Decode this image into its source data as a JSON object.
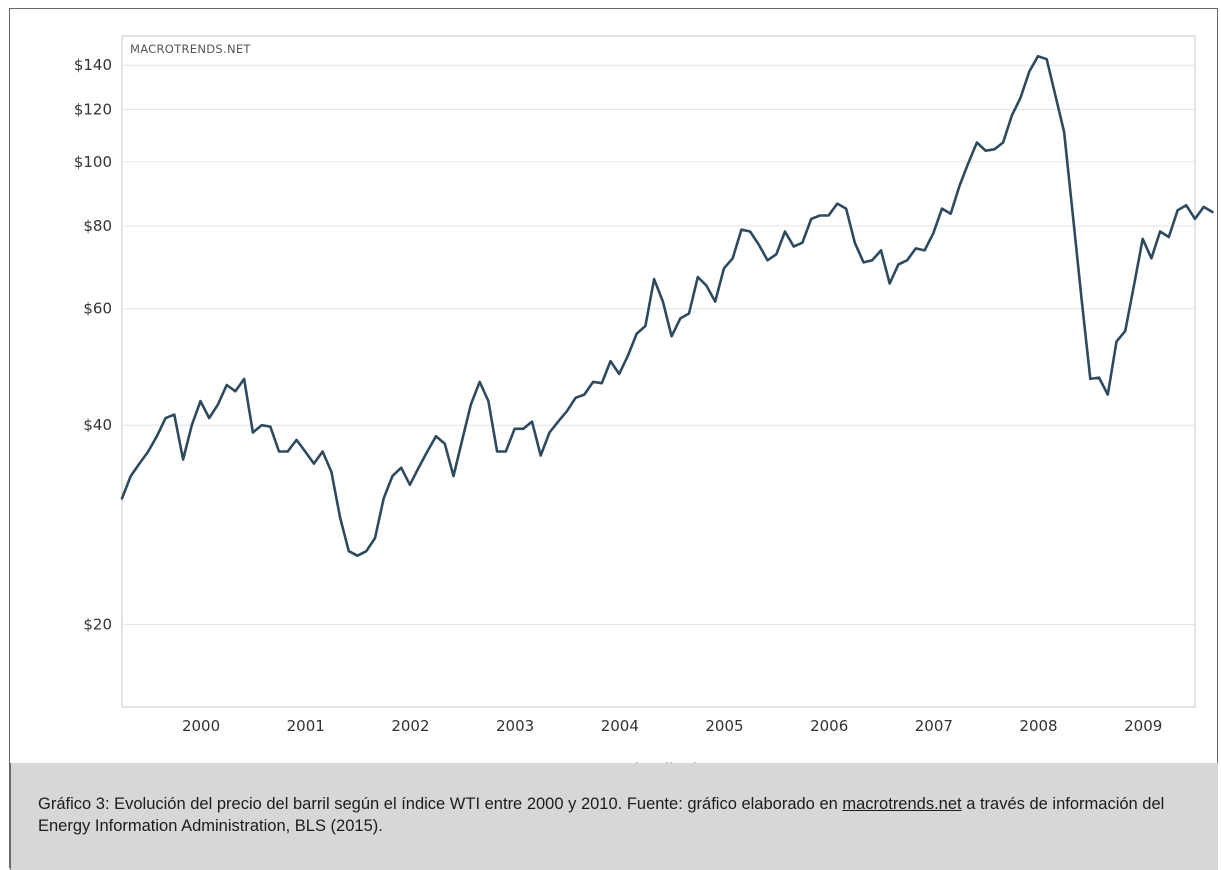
{
  "chart_data": {
    "type": "line",
    "watermark": "MACROTRENDS.NET",
    "legend": "WTI Crude Oil Price",
    "legend_position": "bottom-center",
    "y_scale": "log",
    "grid": true,
    "ylim": [
      15,
      155
    ],
    "y_ticks": [
      {
        "value": 20,
        "label": "$20"
      },
      {
        "value": 40,
        "label": "$40"
      },
      {
        "value": 60,
        "label": "$60"
      },
      {
        "value": 80,
        "label": "$80"
      },
      {
        "value": 100,
        "label": "$100"
      },
      {
        "value": 120,
        "label": "$120"
      },
      {
        "value": 140,
        "label": "$140"
      }
    ],
    "xlim": [
      "1999-06",
      "2009-09"
    ],
    "x_ticks": [
      {
        "date": "2000-01",
        "label": "2000"
      },
      {
        "date": "2001-01",
        "label": "2001"
      },
      {
        "date": "2002-01",
        "label": "2002"
      },
      {
        "date": "2003-01",
        "label": "2003"
      },
      {
        "date": "2004-01",
        "label": "2004"
      },
      {
        "date": "2005-01",
        "label": "2005"
      },
      {
        "date": "2006-01",
        "label": "2006"
      },
      {
        "date": "2007-01",
        "label": "2007"
      },
      {
        "date": "2008-01",
        "label": "2008"
      },
      {
        "date": "2009-01",
        "label": "2009"
      }
    ],
    "series": [
      {
        "name": "WTI Crude Oil Price",
        "color": "#2e4a5f",
        "points": [
          [
            "1999-06",
            31
          ],
          [
            "1999-07",
            33.5
          ],
          [
            "1999-08",
            35
          ],
          [
            "1999-09",
            36.5
          ],
          [
            "1999-10",
            38.5
          ],
          [
            "1999-11",
            41
          ],
          [
            "1999-12",
            41.5
          ],
          [
            "2000-01",
            35.5
          ],
          [
            "2000-02",
            40
          ],
          [
            "2000-03",
            43.5
          ],
          [
            "2000-04",
            41
          ],
          [
            "2000-05",
            43
          ],
          [
            "2000-06",
            46
          ],
          [
            "2000-07",
            45
          ],
          [
            "2000-08",
            47
          ],
          [
            "2000-09",
            39
          ],
          [
            "2000-10",
            40
          ],
          [
            "2000-11",
            39.8
          ],
          [
            "2000-12",
            36.5
          ],
          [
            "2001-01",
            36.5
          ],
          [
            "2001-02",
            38
          ],
          [
            "2001-03",
            36.5
          ],
          [
            "2001-04",
            35
          ],
          [
            "2001-05",
            36.5
          ],
          [
            "2001-06",
            34
          ],
          [
            "2001-07",
            29
          ],
          [
            "2001-08",
            25.8
          ],
          [
            "2001-09",
            25.4
          ],
          [
            "2001-10",
            25.8
          ],
          [
            "2001-11",
            27
          ],
          [
            "2001-12",
            31
          ],
          [
            "2002-01",
            33.5
          ],
          [
            "2002-02",
            34.5
          ],
          [
            "2002-03",
            32.5
          ],
          [
            "2002-04",
            34.5
          ],
          [
            "2002-05",
            36.5
          ],
          [
            "2002-06",
            38.5
          ],
          [
            "2002-07",
            37.5
          ],
          [
            "2002-08",
            33.5
          ],
          [
            "2002-09",
            38
          ],
          [
            "2002-10",
            43
          ],
          [
            "2002-11",
            46.5
          ],
          [
            "2002-12",
            43.5
          ],
          [
            "2003-01",
            36.5
          ],
          [
            "2003-02",
            36.5
          ],
          [
            "2003-03",
            39.5
          ],
          [
            "2003-04",
            39.5
          ],
          [
            "2003-05",
            40.5
          ],
          [
            "2003-06",
            36
          ],
          [
            "2003-07",
            39
          ],
          [
            "2003-08",
            40.5
          ],
          [
            "2003-09",
            42
          ],
          [
            "2003-10",
            44
          ],
          [
            "2003-11",
            44.5
          ],
          [
            "2003-12",
            46.5
          ],
          [
            "2004-01",
            46.3
          ],
          [
            "2004-02",
            50
          ],
          [
            "2004-03",
            47.8
          ],
          [
            "2004-04",
            51
          ],
          [
            "2004-05",
            55
          ],
          [
            "2004-06",
            56.5
          ],
          [
            "2004-07",
            66.5
          ],
          [
            "2004-08",
            61.5
          ],
          [
            "2004-09",
            54.5
          ],
          [
            "2004-10",
            58
          ],
          [
            "2004-11",
            59
          ],
          [
            "2004-12",
            67
          ],
          [
            "2005-01",
            65
          ],
          [
            "2005-02",
            61.5
          ],
          [
            "2005-03",
            69
          ],
          [
            "2005-04",
            71.5
          ],
          [
            "2005-05",
            79
          ],
          [
            "2005-06",
            78.5
          ],
          [
            "2005-07",
            75
          ],
          [
            "2005-08",
            71
          ],
          [
            "2005-09",
            72.5
          ],
          [
            "2005-10",
            78.5
          ],
          [
            "2005-11",
            74.5
          ],
          [
            "2005-12",
            75.5
          ],
          [
            "2006-01",
            82
          ],
          [
            "2006-02",
            83
          ],
          [
            "2006-03",
            83
          ],
          [
            "2006-04",
            86.5
          ],
          [
            "2006-05",
            85
          ],
          [
            "2006-06",
            75.5
          ],
          [
            "2006-07",
            70.5
          ],
          [
            "2006-08",
            71
          ],
          [
            "2006-09",
            73.5
          ],
          [
            "2006-10",
            65.5
          ],
          [
            "2006-11",
            70
          ],
          [
            "2006-12",
            71
          ],
          [
            "2007-01",
            74
          ],
          [
            "2007-02",
            73.5
          ],
          [
            "2007-03",
            78
          ],
          [
            "2007-04",
            85
          ],
          [
            "2007-05",
            83.5
          ],
          [
            "2007-06",
            92
          ],
          [
            "2007-07",
            99.5
          ],
          [
            "2007-08",
            107
          ],
          [
            "2007-09",
            104
          ],
          [
            "2007-10",
            104.5
          ],
          [
            "2007-11",
            107
          ],
          [
            "2007-12",
            117.5
          ],
          [
            "2008-01",
            125
          ],
          [
            "2008-02",
            137
          ],
          [
            "2008-03",
            144.5
          ],
          [
            "2008-04",
            143
          ],
          [
            "2008-05",
            126
          ],
          [
            "2008-06",
            111
          ],
          [
            "2008-07",
            83
          ],
          [
            "2008-08",
            62
          ],
          [
            "2008-09",
            47
          ],
          [
            "2008-10",
            47.2
          ],
          [
            "2008-11",
            44.5
          ],
          [
            "2008-12",
            53.5
          ],
          [
            "2009-01",
            55.5
          ],
          [
            "2009-02",
            65
          ],
          [
            "2009-03",
            76.5
          ],
          [
            "2009-04",
            71.5
          ],
          [
            "2009-05",
            78.5
          ],
          [
            "2009-06",
            77
          ],
          [
            "2009-07",
            84.5
          ],
          [
            "2009-08",
            86
          ],
          [
            "2009-09",
            82
          ],
          [
            "2009-10",
            85.5
          ],
          [
            "2009-11",
            84
          ]
        ]
      }
    ]
  },
  "caption": {
    "part1": "Gráfico 3: Evolución del precio del barril según el índice WTI entre 2000 y 2010. Fuente: gráfico elaborado en ",
    "link": "macrotrends.net",
    "part2": " a través de información del Energy Information Administration, BLS (2015)."
  }
}
